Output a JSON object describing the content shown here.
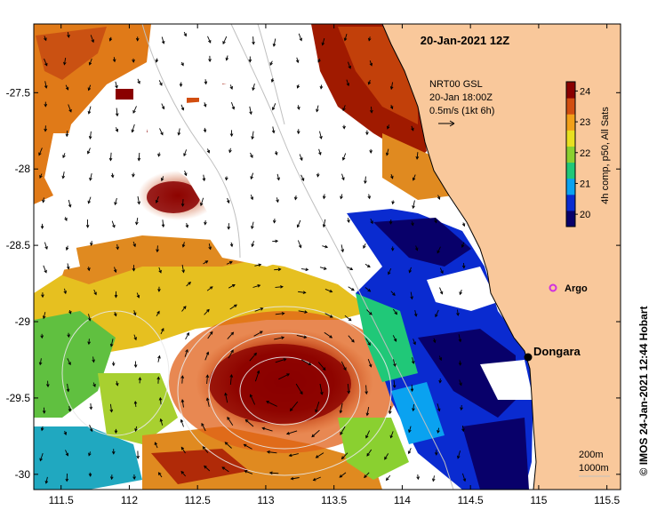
{
  "title": "20-Jan-2021 12Z",
  "vector_legend": {
    "line1": "NRT00 GSL",
    "line2": "20-Jan 18:00Z",
    "line3": "0.5m/s (1kt 6h)"
  },
  "colorbar": {
    "label": "4h comp, p50, All Sats",
    "ticks": [
      "20",
      "21",
      "22",
      "23",
      "24"
    ],
    "range": [
      19.6,
      24.3
    ],
    "colors": [
      "#08006a",
      "#0a2bd0",
      "#0aa2f0",
      "#20c878",
      "#8ad030",
      "#e8e020",
      "#f2a018",
      "#d24e10",
      "#8a0000"
    ]
  },
  "axes": {
    "x_ticks": [
      "111.5",
      "112",
      "112.5",
      "113",
      "113.5",
      "114",
      "114.5",
      "115",
      "115.5"
    ],
    "y_ticks": [
      "-27.5",
      "-28",
      "-28.5",
      "-29",
      "-29.5",
      "-30"
    ],
    "lon_range": [
      111.3,
      115.6
    ],
    "lat_range": [
      -30.1,
      -27.05
    ]
  },
  "places": {
    "dongara": "Dongara",
    "argo": "Argo"
  },
  "depth_legend": {
    "line1": "200m",
    "line2": "1000m"
  },
  "credit": "© IMOS 24-Jan-2021 12:44 Hobart",
  "colors": {
    "land": "#f9c89b",
    "no_data": "#ffffff",
    "argo": "#d030e0"
  }
}
